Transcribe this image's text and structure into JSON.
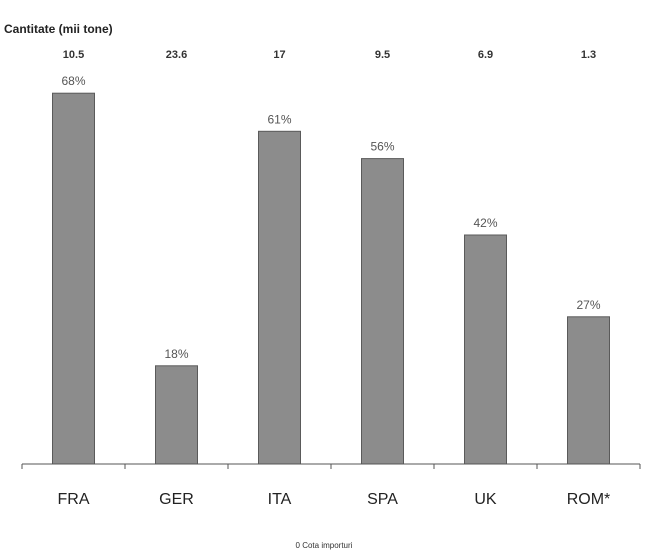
{
  "chart_data": {
    "type": "bar",
    "categories": [
      "FRA",
      "GER",
      "ITA",
      "SPA",
      "UK",
      "ROM*"
    ],
    "values": [
      68,
      18,
      61,
      56,
      42,
      27
    ],
    "data_labels": [
      "68%",
      "18%",
      "61%",
      "56%",
      "42%",
      "27%"
    ],
    "quantity_title": "Cantitate (mii tone)",
    "quantities": [
      "10.5",
      "23.6",
      "17",
      "9.5",
      "6.9",
      "1.3"
    ],
    "legend": "0 Cota importuri",
    "ylim": [
      0,
      75
    ],
    "grid": false,
    "bar_color": "#8c8c8c",
    "bar_edge_color": "#5a5a5a"
  }
}
